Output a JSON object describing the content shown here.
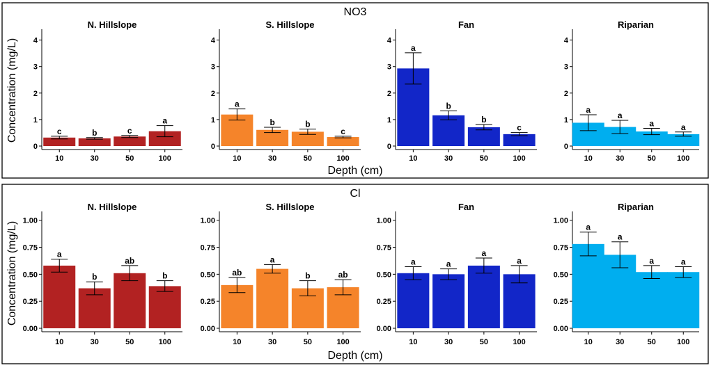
{
  "colors": {
    "N. Hillslope": "#B22222",
    "S. Hillslope": "#F5842A",
    "Fan": "#1226C8",
    "Riparian": "#00AEEF",
    "frame": "#000000",
    "axis": "#000000"
  },
  "chart_data": [
    {
      "type": "bar",
      "title": "NO3",
      "xlabel": "Depth (cm)",
      "ylabel": "Concentration (mg/L)",
      "ylim": [
        0,
        4.2
      ],
      "yticks": [
        "0",
        "1",
        "2",
        "3",
        "4"
      ],
      "ytick_values": [
        0,
        1,
        2,
        3,
        4
      ],
      "categories": [
        "10",
        "30",
        "50",
        "100"
      ],
      "panels": [
        {
          "name": "N. Hillslope",
          "values": [
            0.32,
            0.29,
            0.36,
            0.56
          ],
          "errors": [
            0.05,
            0.03,
            0.04,
            0.21
          ],
          "letters": [
            "c",
            "b",
            "c",
            "a"
          ]
        },
        {
          "name": "S. Hillslope",
          "values": [
            1.19,
            0.61,
            0.54,
            0.34
          ],
          "errors": [
            0.21,
            0.1,
            0.1,
            0.03
          ],
          "letters": [
            "a",
            "b",
            "b",
            "c"
          ]
        },
        {
          "name": "Fan",
          "values": [
            2.93,
            1.16,
            0.71,
            0.45
          ],
          "errors": [
            0.59,
            0.17,
            0.1,
            0.06
          ],
          "letters": [
            "a",
            "b",
            "b",
            "c"
          ]
        },
        {
          "name": "Riparian",
          "values": [
            0.88,
            0.72,
            0.55,
            0.45
          ],
          "errors": [
            0.3,
            0.25,
            0.12,
            0.08
          ],
          "letters": [
            "a",
            "a",
            "a",
            "a"
          ]
        }
      ]
    },
    {
      "type": "bar",
      "title": "Cl",
      "xlabel": "Depth (cm)",
      "ylabel": "Concentration (mg/L)",
      "ylim": [
        0,
        1.03
      ],
      "yticks": [
        "0.00",
        "0.25",
        "0.50",
        "0.75",
        "1.00"
      ],
      "ytick_values": [
        0,
        0.25,
        0.5,
        0.75,
        1.0
      ],
      "categories": [
        "10",
        "30",
        "50",
        "100"
      ],
      "panels": [
        {
          "name": "N. Hillslope",
          "values": [
            0.58,
            0.37,
            0.51,
            0.39
          ],
          "errors": [
            0.06,
            0.06,
            0.07,
            0.05
          ],
          "letters": [
            "a",
            "b",
            "ab",
            "b"
          ]
        },
        {
          "name": "S. Hillslope",
          "values": [
            0.4,
            0.55,
            0.37,
            0.38
          ],
          "errors": [
            0.07,
            0.04,
            0.07,
            0.07
          ],
          "letters": [
            "ab",
            "a",
            "b",
            "ab"
          ]
        },
        {
          "name": "Fan",
          "values": [
            0.51,
            0.5,
            0.58,
            0.5
          ],
          "errors": [
            0.06,
            0.05,
            0.07,
            0.08
          ],
          "letters": [
            "a",
            "a",
            "a",
            "a"
          ]
        },
        {
          "name": "Riparian",
          "values": [
            0.78,
            0.68,
            0.52,
            0.52
          ],
          "errors": [
            0.11,
            0.12,
            0.06,
            0.05
          ],
          "letters": [
            "a",
            "a",
            "a",
            "a"
          ]
        }
      ]
    }
  ]
}
